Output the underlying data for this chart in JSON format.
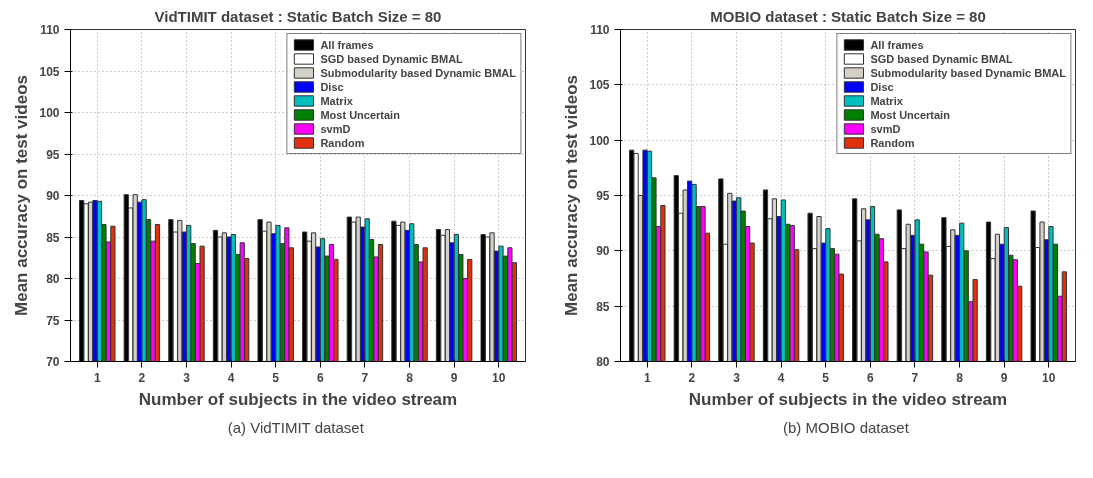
{
  "chart_data": [
    {
      "type": "bar",
      "title": "VidTIMIT dataset : Static Batch Size = 80",
      "xlabel": "Number of subjects in the video stream",
      "ylabel": "Mean accuracy on test videos",
      "categories": [
        "1",
        "2",
        "3",
        "4",
        "5",
        "6",
        "7",
        "8",
        "9",
        "10"
      ],
      "ylim": [
        70,
        110
      ],
      "yticks": [
        70,
        75,
        80,
        85,
        90,
        95,
        100,
        105,
        110
      ],
      "grid": true,
      "legend": "top right",
      "annotations": [
        "(a)  VidTIMIT dataset"
      ],
      "series": [
        {
          "name": "All frames",
          "color": "#000000",
          "values": [
            89.4,
            90.1,
            87.1,
            85.8,
            87.1,
            85.6,
            87.4,
            86.9,
            85.9,
            85.3
          ]
        },
        {
          "name": "SGD based Dynamic BMAL",
          "color": "#ffffff",
          "values": [
            89.0,
            88.5,
            85.6,
            85.0,
            85.7,
            84.5,
            86.8,
            86.4,
            85.2,
            85.0
          ]
        },
        {
          "name": "Submodularity based Dynamic BMAL",
          "color": "#d4d0c8",
          "values": [
            89.2,
            90.1,
            87.0,
            85.5,
            86.8,
            85.5,
            87.4,
            86.8,
            85.9,
            85.5
          ]
        },
        {
          "name": "Disc",
          "color": "#0000ff",
          "values": [
            89.4,
            89.2,
            85.6,
            85.0,
            85.4,
            83.8,
            86.2,
            85.8,
            84.3,
            83.3
          ]
        },
        {
          "name": "Matrix",
          "color": "#00bfbf",
          "values": [
            89.3,
            89.5,
            86.4,
            85.3,
            86.4,
            84.8,
            87.2,
            86.6,
            85.3,
            83.9
          ]
        },
        {
          "name": "Most Uncertain",
          "color": "#007f00",
          "values": [
            86.5,
            87.1,
            84.2,
            82.9,
            84.2,
            82.7,
            84.7,
            84.1,
            82.9,
            82.7
          ]
        },
        {
          "name": "svmD",
          "color": "#ff00ff",
          "values": [
            84.4,
            84.5,
            81.8,
            84.3,
            86.1,
            84.1,
            82.6,
            82.0,
            80.0,
            83.7
          ]
        },
        {
          "name": "Random",
          "color": "#e03010",
          "values": [
            86.3,
            86.5,
            83.9,
            82.4,
            83.7,
            82.3,
            84.1,
            83.7,
            82.3,
            81.9
          ]
        }
      ]
    },
    {
      "type": "bar",
      "title": "MOBIO dataset : Static Batch Size = 80",
      "xlabel": "Number of subjects in the video stream",
      "ylabel": "Mean accuracy on test videos",
      "categories": [
        "1",
        "2",
        "3",
        "4",
        "5",
        "6",
        "7",
        "8",
        "9",
        "10"
      ],
      "ylim": [
        80,
        110
      ],
      "yticks": [
        80,
        85,
        90,
        95,
        100,
        105,
        110
      ],
      "grid": true,
      "legend": "top right",
      "annotations": [
        "(b)  MOBIO dataset"
      ],
      "series": [
        {
          "name": "All frames",
          "color": "#000000",
          "values": [
            99.1,
            96.8,
            96.5,
            95.5,
            93.4,
            94.7,
            93.7,
            93.0,
            92.6,
            93.6
          ]
        },
        {
          "name": "SGD based Dynamic BMAL",
          "color": "#ffffff",
          "values": [
            98.8,
            93.4,
            90.6,
            92.9,
            90.2,
            90.9,
            90.2,
            90.4,
            89.3,
            90.3
          ]
        },
        {
          "name": "Submodularity based Dynamic BMAL",
          "color": "#d4d0c8",
          "values": [
            95.0,
            95.5,
            95.2,
            94.7,
            93.1,
            93.8,
            92.4,
            91.9,
            91.5,
            92.6
          ]
        },
        {
          "name": "Disc",
          "color": "#0000ff",
          "values": [
            99.1,
            96.3,
            94.5,
            93.1,
            90.7,
            92.8,
            91.4,
            91.4,
            90.6,
            91.0
          ]
        },
        {
          "name": "Matrix",
          "color": "#00bfbf",
          "values": [
            99.0,
            96.0,
            94.8,
            94.6,
            92.0,
            94.0,
            92.8,
            92.5,
            92.1,
            92.2
          ]
        },
        {
          "name": "Most Uncertain",
          "color": "#007f00",
          "values": [
            96.6,
            94.0,
            93.6,
            92.4,
            90.2,
            91.5,
            90.6,
            90.0,
            89.6,
            90.6
          ]
        },
        {
          "name": "svmD",
          "color": "#ff00ff",
          "values": [
            92.2,
            94.0,
            92.2,
            92.3,
            89.7,
            91.1,
            89.9,
            85.4,
            89.2,
            85.9
          ]
        },
        {
          "name": "Random",
          "color": "#e03010",
          "values": [
            94.1,
            91.6,
            90.7,
            90.1,
            87.9,
            89.0,
            87.8,
            87.4,
            86.8,
            88.1
          ]
        }
      ]
    }
  ]
}
